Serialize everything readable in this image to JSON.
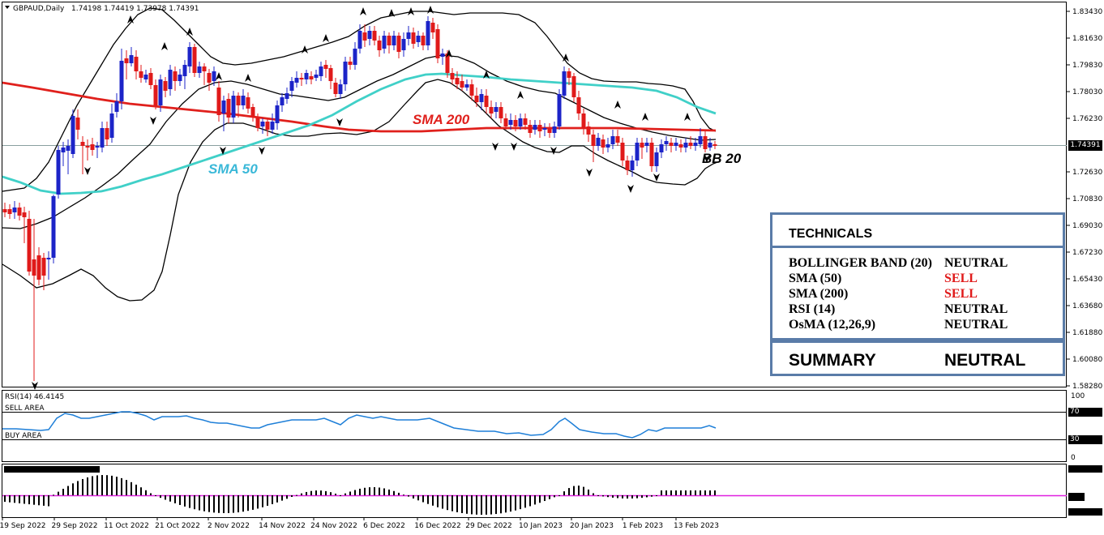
{
  "header": {
    "symbol_tf": "GBPAUD,Daily",
    "ohlc": "1.74198 1.74419 1.73978 1.74391"
  },
  "price_axis": {
    "ticks": [
      "1.83430",
      "1.81630",
      "1.79830",
      "1.78030",
      "1.76230",
      "1.74391",
      "1.72630",
      "1.70830",
      "1.69030",
      "1.67230",
      "1.65430",
      "1.63680",
      "1.61880",
      "1.60080",
      "1.58280"
    ],
    "current_price": "1.74391"
  },
  "date_axis": {
    "labels": [
      "19 Sep 2022",
      "29 Sep 2022",
      "11 Oct 2022",
      "21 Oct 2022",
      "2 Nov 2022",
      "14 Nov 2022",
      "24 Nov 2022",
      "6 Dec 2022",
      "16 Dec 2022",
      "29 Dec 2022",
      "10 Jan 2023",
      "20 Jan 2023",
      "1 Feb 2023",
      "13 Feb 2023"
    ]
  },
  "overlay_labels": {
    "sma200": "SMA 200",
    "sma50": "SMA 50",
    "bb20": "BB 20"
  },
  "rsi": {
    "header": "RSI(14) 46.4145",
    "sell_area": "SELL AREA",
    "buy_area": "BUY AREA",
    "scale_100": "100",
    "scale_70": "70",
    "scale_30": "30",
    "scale_0": "0"
  },
  "technicals": {
    "title": "TECHNICALS",
    "rows": [
      {
        "name": "BOLLINGER BAND (20)",
        "signal": "NEUTRAL"
      },
      {
        "name": "SMA (50)",
        "signal": "SELL"
      },
      {
        "name": "SMA (200)",
        "signal": "SELL"
      },
      {
        "name": "RSI (14)",
        "signal": "NEUTRAL"
      },
      {
        "name": "OsMA (12,26,9)",
        "signal": "NEUTRAL"
      }
    ],
    "summary_label": "SUMMARY",
    "summary_value": "NEUTRAL"
  },
  "colors": {
    "bull": "#1c24c8",
    "bear": "#e01a1a",
    "sma200": "#e0201c",
    "sma50": "#40d0c8",
    "rsi_line": "#1e7fd8",
    "zero_line": "#e020e0",
    "panel_border": "#5a7ca8",
    "sell": "#e01a1a"
  },
  "chart_data": {
    "type": "candlestick",
    "series": [
      {
        "name": "SMA 200",
        "trend": "declining"
      },
      {
        "name": "SMA 50"
      },
      {
        "name": "BB 20"
      }
    ]
  }
}
